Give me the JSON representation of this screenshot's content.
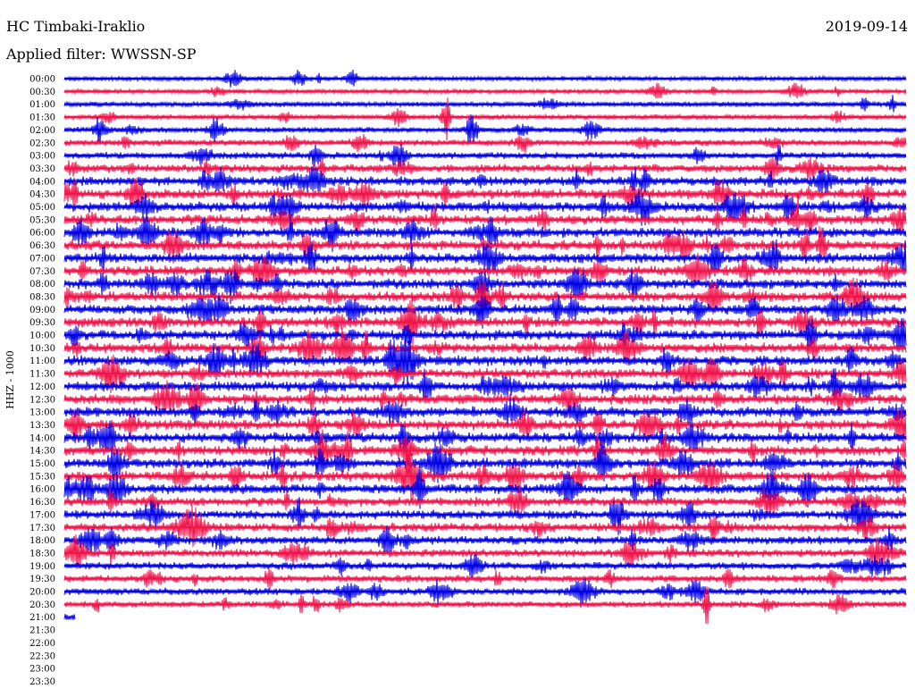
{
  "header": {
    "station": "HC Timbaki-Iraklio",
    "date": "2019-09-14",
    "filter": "Applied filter: WWSSN-SP"
  },
  "chart_data": {
    "type": "line",
    "title": "HC Timbaki-Iraklio",
    "subtitle": "Applied filter: WWSSN-SP",
    "ylabel": "HHZ - 1000",
    "xlabel": "",
    "row_labels": [
      "00:00",
      "00:30",
      "01:00",
      "01:30",
      "02:00",
      "02:30",
      "03:00",
      "03:30",
      "04:00",
      "04:30",
      "05:00",
      "05:30",
      "06:00",
      "06:30",
      "07:00",
      "07:30",
      "08:00",
      "08:30",
      "09:00",
      "09:30",
      "10:00",
      "10:30",
      "11:00",
      "11:30",
      "12:00",
      "12:30",
      "13:00",
      "13:30",
      "14:00",
      "14:30",
      "15:00",
      "15:30",
      "16:00",
      "16:30",
      "17:00",
      "17:30",
      "18:00",
      "18:30",
      "19:00",
      "19:30",
      "20:00",
      "20:30",
      "21:00",
      "21:30",
      "22:00",
      "22:30",
      "23:00",
      "23:30"
    ],
    "row_minutes": 30,
    "recorded_rows": 43,
    "last_row_fraction": 0.01,
    "series_colors": [
      "#0000e6",
      "#f0144b"
    ],
    "activity": [
      0.35,
      0.35,
      0.4,
      0.4,
      0.45,
      0.55,
      0.6,
      0.8,
      0.9,
      1.0,
      1.0,
      1.0,
      1.0,
      1.0,
      1.0,
      1.0,
      1.0,
      1.0,
      1.0,
      1.0,
      1.0,
      1.0,
      1.0,
      1.0,
      1.0,
      1.0,
      1.0,
      1.0,
      1.0,
      1.0,
      1.0,
      1.0,
      0.95,
      0.85,
      0.85,
      0.85,
      0.8,
      0.75,
      0.7,
      0.65,
      0.65,
      0.55,
      0.3,
      0,
      0,
      0,
      0,
      0
    ],
    "grid": false,
    "legend": "none"
  }
}
